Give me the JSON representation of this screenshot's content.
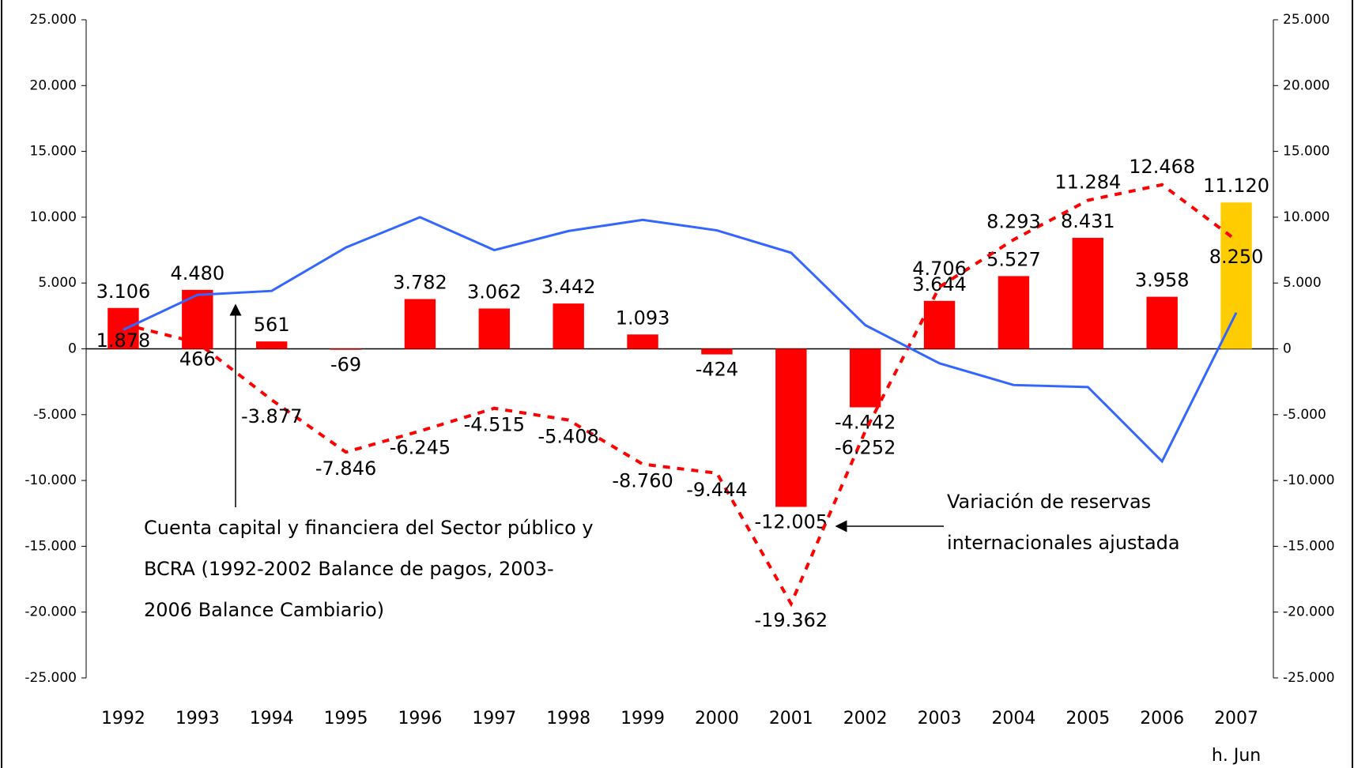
{
  "chart_data": {
    "type": "bar_line",
    "categories": [
      "1992",
      "1993",
      "1994",
      "1995",
      "1996",
      "1997",
      "1998",
      "1999",
      "2000",
      "2001",
      "2002",
      "2003",
      "2004",
      "2005",
      "2006",
      "2007"
    ],
    "category_note": "h. Jun",
    "ylim": [
      -25000,
      25000
    ],
    "yticks": [
      {
        "value": -25000,
        "label": "-25.000"
      },
      {
        "value": -20000,
        "label": "-20.000"
      },
      {
        "value": -15000,
        "label": "-15.000"
      },
      {
        "value": -10000,
        "label": "-10.000"
      },
      {
        "value": -5000,
        "label": "-5.000"
      },
      0,
      {
        "value": 5000,
        "label": "5.000"
      },
      {
        "value": 10000,
        "label": "10.000"
      },
      {
        "value": 15000,
        "label": "15.000"
      },
      {
        "value": 20000,
        "label": "20.000"
      },
      {
        "value": 25000,
        "label": "25.000"
      }
    ],
    "y2lim": [
      -25000,
      25000
    ],
    "y2ticks": [
      {
        "value": -25000,
        "label": "-25.000"
      },
      {
        "value": -20000,
        "label": "-20.000"
      },
      {
        "value": -15000,
        "label": "-15.000"
      },
      {
        "value": -10000,
        "label": "-10.000"
      },
      {
        "value": -5000,
        "label": "-5.000"
      },
      0,
      {
        "value": 5000,
        "label": "5.000"
      },
      {
        "value": 10000,
        "label": "10.000"
      },
      {
        "value": 15000,
        "label": "15.000"
      },
      {
        "value": 20000,
        "label": "20.000"
      },
      {
        "value": 25000,
        "label": "25.000"
      }
    ],
    "series": [
      {
        "kind": "bar",
        "color": "#ff0000",
        "colors": [
          "#ff0000",
          "#ff0000",
          "#ff0000",
          "#ff0000",
          "#ff0000",
          "#ff0000",
          "#ff0000",
          "#ff0000",
          "#ff0000",
          "#ff0000",
          "#ff0000",
          "#ff0000",
          "#ff0000",
          "#ff0000",
          "#ff0000",
          "#ffcc00"
        ],
        "values": [
          3106,
          4480,
          561,
          -69,
          3782,
          3062,
          3442,
          1093,
          -424,
          -12005,
          -4442,
          3644,
          5527,
          8431,
          3958,
          11120
        ],
        "value_labels": [
          "3.106",
          "4.480",
          "561",
          "-69",
          "3.782",
          "3.062",
          "3.442",
          "1.093",
          "-424",
          "-12.005",
          "-4.442",
          "3.644",
          "5.527",
          "8.431",
          "3.958",
          "11.120"
        ]
      },
      {
        "kind": "dashed-line",
        "color": "#ff0000",
        "values": [
          1878,
          466,
          -3877,
          -7846,
          -6245,
          -4515,
          -5408,
          -8760,
          -9444,
          -19362,
          -6252,
          4706,
          8293,
          11284,
          12468,
          8250
        ],
        "value_labels": [
          "1.878",
          "466",
          "-3.877",
          "-7.846",
          "-6.245",
          "-4.515",
          "-5.408",
          "-8.760",
          "-9.444",
          "-19.362",
          "-6.252",
          "4.706",
          "8.293",
          "11.284",
          "12.468",
          "8.250"
        ]
      },
      {
        "kind": "line",
        "color": "#3366ff",
        "values": [
          1450,
          4100,
          4400,
          7700,
          10000,
          7500,
          8950,
          9800,
          9000,
          7300,
          1800,
          -1100,
          -2750,
          -2900,
          -8550,
          2750
        ]
      }
    ],
    "annotations": [
      {
        "lines": [
          "Cuenta capital y financiera del Sector público y",
          "BCRA (1992-2002 Balance de pagos, 2003-",
          "2006  Balance Cambiario)"
        ]
      },
      {
        "lines": [
          "Variación de reservas",
          "internacionales ajustada"
        ]
      }
    ]
  }
}
